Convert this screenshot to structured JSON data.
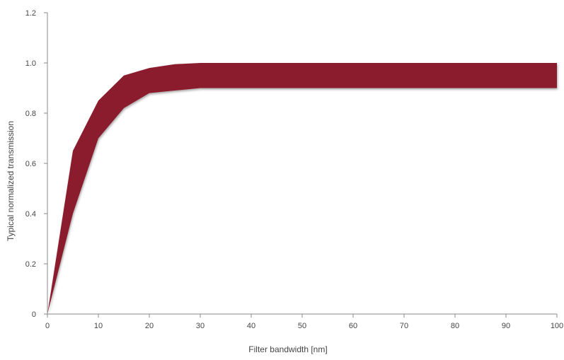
{
  "chart_data": {
    "type": "area",
    "title": "",
    "xlabel": "Filter bandwidth [nm]",
    "ylabel": "Typical normalized transmission",
    "xlim": [
      0,
      100
    ],
    "ylim": [
      0,
      1.2
    ],
    "x_ticks": [
      0,
      10,
      20,
      30,
      40,
      50,
      60,
      70,
      80,
      90,
      100
    ],
    "x_tick_labels": [
      "0",
      "10",
      "20",
      "30",
      "40",
      "50",
      "60",
      "70",
      "80",
      "90",
      "100"
    ],
    "y_ticks": [
      0,
      0.2,
      0.4,
      0.6,
      0.8,
      1.0,
      1.2
    ],
    "y_tick_labels": [
      "0",
      "0.2",
      "0.4",
      "0.6",
      "0.8",
      "1.0",
      "1.2"
    ],
    "grid": false,
    "legend": "none",
    "band": {
      "color": "#8b1e2e",
      "x": [
        0,
        5,
        10,
        15,
        20,
        25,
        30,
        40,
        50,
        60,
        70,
        80,
        90,
        100
      ],
      "upper": [
        0.0,
        0.65,
        0.85,
        0.95,
        0.98,
        0.995,
        1.0,
        1.0,
        1.0,
        1.0,
        1.0,
        1.0,
        1.0,
        1.0
      ],
      "lower": [
        0.0,
        0.4,
        0.7,
        0.82,
        0.88,
        0.89,
        0.9,
        0.9,
        0.9,
        0.9,
        0.9,
        0.9,
        0.9,
        0.9
      ]
    }
  }
}
